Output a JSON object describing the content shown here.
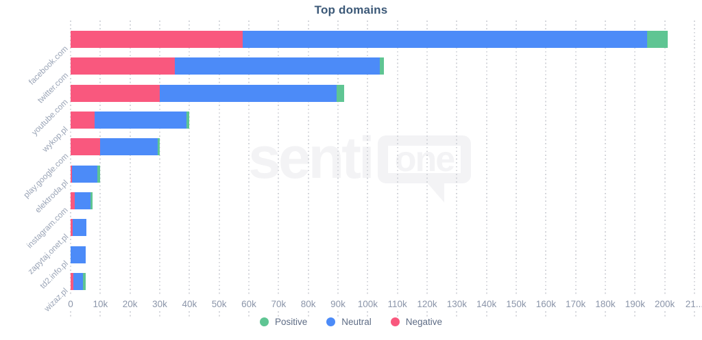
{
  "title": "Top domains",
  "watermark": {
    "text_left": "senti",
    "text_bubble": "one"
  },
  "legend": [
    {
      "label": "Positive",
      "color": "#5FC593"
    },
    {
      "label": "Neutral",
      "color": "#4C8BF8"
    },
    {
      "label": "Negative",
      "color": "#F9587E"
    }
  ],
  "colors": {
    "positive": "#5FC593",
    "neutral": "#4C8BF8",
    "negative": "#F9587E",
    "title_text": "#3B5877",
    "axis_text": "#8B95A9",
    "category_text": "#9AA4B6",
    "legend_text": "#5E6C85",
    "gridline": "#D4D6DB",
    "watermark": "#F3F3F5",
    "background": "#FFFFFF"
  },
  "chart_data": {
    "type": "bar",
    "orientation": "horizontal",
    "stacked": true,
    "title": "Top domains",
    "grid": "dotted-vertical",
    "legend_position": "bottom",
    "categories": [
      "facebook.com",
      "twitter.com",
      "youtube.com",
      "wykop.pl",
      "play.google.com",
      "elektroda.pl",
      "instagram.com",
      "zapytaj.onet.pl",
      "td2.info.pl",
      "wizaz.pl"
    ],
    "series": [
      {
        "name": "Negative",
        "color": "#F9587E",
        "values": [
          58000,
          35000,
          30000,
          8000,
          10000,
          500,
          1300,
          700,
          0,
          900
        ]
      },
      {
        "name": "Neutral",
        "color": "#4C8BF8",
        "values": [
          136000,
          69000,
          59500,
          31000,
          19300,
          8600,
          5300,
          4600,
          5100,
          3300
        ]
      },
      {
        "name": "Positive",
        "color": "#5FC593",
        "values": [
          7000,
          1500,
          2500,
          1000,
          700,
          900,
          900,
          0,
          0,
          900
        ]
      }
    ],
    "totals": [
      201000,
      105500,
      92000,
      40000,
      30000,
      10000,
      7500,
      5300,
      5100,
      5100
    ],
    "x_axis": {
      "min": 0,
      "max": 210000,
      "tick_step": 10000,
      "tick_labels": [
        "0",
        "10k",
        "20k",
        "30k",
        "40k",
        "50k",
        "60k",
        "70k",
        "80k",
        "90k",
        "100k",
        "110k",
        "120k",
        "130k",
        "140k",
        "150k",
        "160k",
        "170k",
        "180k",
        "190k",
        "200k",
        "21..."
      ]
    }
  }
}
